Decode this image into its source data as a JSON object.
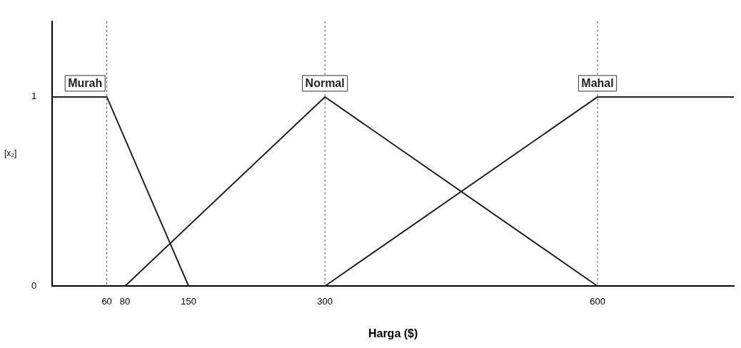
{
  "chart_data": {
    "type": "line",
    "xlabel": "Harga ($)",
    "ylabel": "[x₂]",
    "series": [
      {
        "name": "Murah",
        "color": "#222222",
        "x": [
          0,
          60,
          150
        ],
        "values": [
          1,
          1,
          0
        ]
      },
      {
        "name": "Normal",
        "color": "#222222",
        "x": [
          80,
          300,
          600
        ],
        "values": [
          0,
          1,
          0
        ]
      },
      {
        "name": "Mahal",
        "color": "#222222",
        "x": [
          300,
          600,
          750
        ],
        "values": [
          0,
          1,
          1
        ]
      }
    ],
    "xlim": [
      0,
      750
    ],
    "xticks": [
      60,
      80,
      150,
      300,
      600
    ],
    "ylim": [
      0,
      1.4
    ],
    "yticks": [
      0,
      1
    ],
    "ref_lines": [
      {
        "axis": "x",
        "value": 60,
        "line_style": "dashed"
      },
      {
        "axis": "x",
        "value": 300,
        "line_style": "dashed"
      },
      {
        "axis": "x",
        "value": 600,
        "line_style": "dashed"
      }
    ],
    "grid": false,
    "marker": "none"
  }
}
